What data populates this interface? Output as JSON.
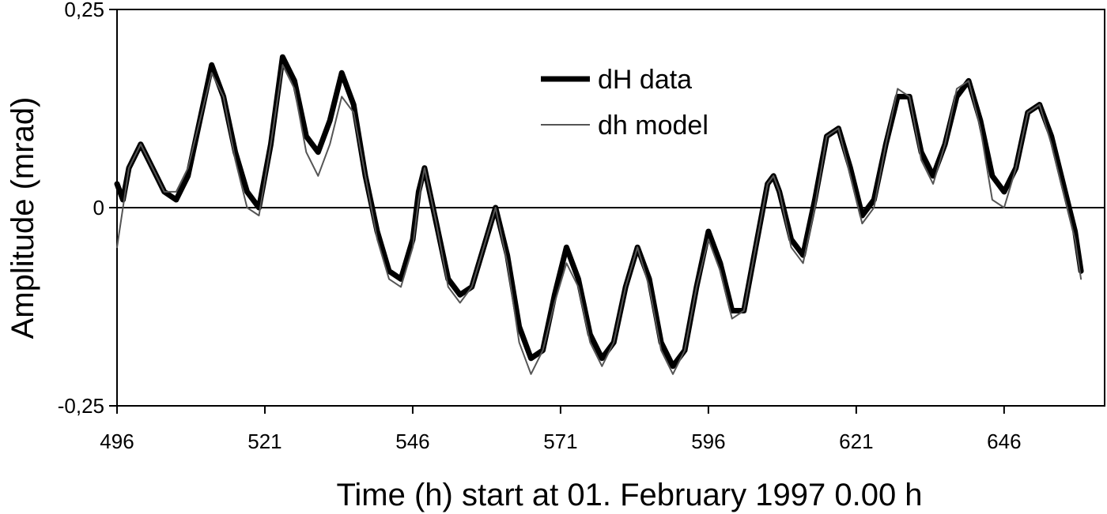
{
  "chart_data": {
    "type": "line",
    "xlabel": "Time (h) start at 01. February 1997 0.00 h",
    "ylabel": "Amplitude (mrad)",
    "xlim": [
      496,
      663
    ],
    "ylim": [
      -0.25,
      0.25
    ],
    "x_ticks": [
      496,
      521,
      546,
      571,
      596,
      621,
      646
    ],
    "y_ticks": [
      {
        "value": 0.25,
        "label": "0,25"
      },
      {
        "value": 0,
        "label": "0"
      },
      {
        "value": -0.25,
        "label": "-0,25"
      }
    ],
    "grid": false,
    "legend_position": "top-center",
    "series": [
      {
        "name": "dH data",
        "color": "#000000",
        "style": "thick",
        "points": [
          [
            496,
            0.03
          ],
          [
            497,
            0.01
          ],
          [
            498,
            0.05
          ],
          [
            500,
            0.08
          ],
          [
            502,
            0.05
          ],
          [
            504,
            0.02
          ],
          [
            506,
            0.01
          ],
          [
            508,
            0.04
          ],
          [
            510,
            0.11
          ],
          [
            512,
            0.18
          ],
          [
            514,
            0.14
          ],
          [
            516,
            0.07
          ],
          [
            518,
            0.02
          ],
          [
            520,
            0.0
          ],
          [
            522,
            0.08
          ],
          [
            524,
            0.19
          ],
          [
            526,
            0.16
          ],
          [
            528,
            0.09
          ],
          [
            530,
            0.07
          ],
          [
            532,
            0.11
          ],
          [
            534,
            0.17
          ],
          [
            536,
            0.13
          ],
          [
            538,
            0.04
          ],
          [
            540,
            -0.03
          ],
          [
            542,
            -0.08
          ],
          [
            544,
            -0.09
          ],
          [
            546,
            -0.04
          ],
          [
            547,
            0.02
          ],
          [
            548,
            0.05
          ],
          [
            550,
            -0.02
          ],
          [
            552,
            -0.09
          ],
          [
            554,
            -0.11
          ],
          [
            556,
            -0.1
          ],
          [
            558,
            -0.05
          ],
          [
            560,
            0.0
          ],
          [
            562,
            -0.06
          ],
          [
            564,
            -0.15
          ],
          [
            566,
            -0.19
          ],
          [
            568,
            -0.18
          ],
          [
            570,
            -0.11
          ],
          [
            572,
            -0.05
          ],
          [
            574,
            -0.09
          ],
          [
            576,
            -0.16
          ],
          [
            578,
            -0.19
          ],
          [
            580,
            -0.17
          ],
          [
            582,
            -0.1
          ],
          [
            584,
            -0.05
          ],
          [
            586,
            -0.09
          ],
          [
            588,
            -0.17
          ],
          [
            590,
            -0.2
          ],
          [
            592,
            -0.18
          ],
          [
            594,
            -0.1
          ],
          [
            596,
            -0.03
          ],
          [
            598,
            -0.07
          ],
          [
            600,
            -0.13
          ],
          [
            602,
            -0.13
          ],
          [
            604,
            -0.05
          ],
          [
            606,
            0.03
          ],
          [
            607,
            0.04
          ],
          [
            608,
            0.02
          ],
          [
            610,
            -0.04
          ],
          [
            612,
            -0.06
          ],
          [
            614,
            0.01
          ],
          [
            616,
            0.09
          ],
          [
            618,
            0.1
          ],
          [
            620,
            0.05
          ],
          [
            622,
            -0.01
          ],
          [
            624,
            0.01
          ],
          [
            626,
            0.08
          ],
          [
            628,
            0.14
          ],
          [
            630,
            0.14
          ],
          [
            632,
            0.07
          ],
          [
            634,
            0.04
          ],
          [
            636,
            0.08
          ],
          [
            638,
            0.14
          ],
          [
            640,
            0.16
          ],
          [
            642,
            0.11
          ],
          [
            644,
            0.04
          ],
          [
            646,
            0.02
          ],
          [
            648,
            0.05
          ],
          [
            650,
            0.12
          ],
          [
            652,
            0.13
          ],
          [
            654,
            0.09
          ],
          [
            656,
            0.03
          ],
          [
            658,
            -0.03
          ],
          [
            659,
            -0.08
          ]
        ]
      },
      {
        "name": "dh model",
        "color": "#555555",
        "style": "thin",
        "points": [
          [
            496,
            -0.05
          ],
          [
            497,
            0.0
          ],
          [
            498,
            0.05
          ],
          [
            500,
            0.08
          ],
          [
            502,
            0.05
          ],
          [
            504,
            0.02
          ],
          [
            506,
            0.02
          ],
          [
            508,
            0.05
          ],
          [
            510,
            0.11
          ],
          [
            512,
            0.17
          ],
          [
            514,
            0.14
          ],
          [
            516,
            0.06
          ],
          [
            518,
            0.0
          ],
          [
            520,
            -0.01
          ],
          [
            522,
            0.08
          ],
          [
            524,
            0.18
          ],
          [
            526,
            0.15
          ],
          [
            528,
            0.07
          ],
          [
            530,
            0.04
          ],
          [
            532,
            0.08
          ],
          [
            534,
            0.14
          ],
          [
            536,
            0.12
          ],
          [
            538,
            0.04
          ],
          [
            540,
            -0.04
          ],
          [
            542,
            -0.09
          ],
          [
            544,
            -0.1
          ],
          [
            546,
            -0.05
          ],
          [
            547,
            0.01
          ],
          [
            548,
            0.05
          ],
          [
            550,
            -0.02
          ],
          [
            552,
            -0.1
          ],
          [
            554,
            -0.12
          ],
          [
            556,
            -0.1
          ],
          [
            558,
            -0.05
          ],
          [
            560,
            0.0
          ],
          [
            562,
            -0.07
          ],
          [
            564,
            -0.17
          ],
          [
            566,
            -0.21
          ],
          [
            568,
            -0.18
          ],
          [
            570,
            -0.12
          ],
          [
            572,
            -0.07
          ],
          [
            574,
            -0.1
          ],
          [
            576,
            -0.17
          ],
          [
            578,
            -0.2
          ],
          [
            580,
            -0.17
          ],
          [
            582,
            -0.1
          ],
          [
            584,
            -0.05
          ],
          [
            586,
            -0.1
          ],
          [
            588,
            -0.18
          ],
          [
            590,
            -0.21
          ],
          [
            592,
            -0.18
          ],
          [
            594,
            -0.1
          ],
          [
            596,
            -0.04
          ],
          [
            598,
            -0.08
          ],
          [
            600,
            -0.14
          ],
          [
            602,
            -0.13
          ],
          [
            604,
            -0.05
          ],
          [
            606,
            0.03
          ],
          [
            607,
            0.04
          ],
          [
            608,
            0.02
          ],
          [
            610,
            -0.05
          ],
          [
            612,
            -0.07
          ],
          [
            614,
            0.0
          ],
          [
            616,
            0.09
          ],
          [
            618,
            0.1
          ],
          [
            620,
            0.04
          ],
          [
            622,
            -0.02
          ],
          [
            624,
            0.0
          ],
          [
            626,
            0.08
          ],
          [
            628,
            0.15
          ],
          [
            630,
            0.14
          ],
          [
            632,
            0.06
          ],
          [
            634,
            0.03
          ],
          [
            636,
            0.08
          ],
          [
            638,
            0.15
          ],
          [
            640,
            0.16
          ],
          [
            642,
            0.1
          ],
          [
            644,
            0.01
          ],
          [
            646,
            0.0
          ],
          [
            648,
            0.05
          ],
          [
            650,
            0.12
          ],
          [
            652,
            0.13
          ],
          [
            654,
            0.08
          ],
          [
            656,
            0.02
          ],
          [
            658,
            -0.04
          ],
          [
            659,
            -0.09
          ]
        ]
      }
    ]
  }
}
